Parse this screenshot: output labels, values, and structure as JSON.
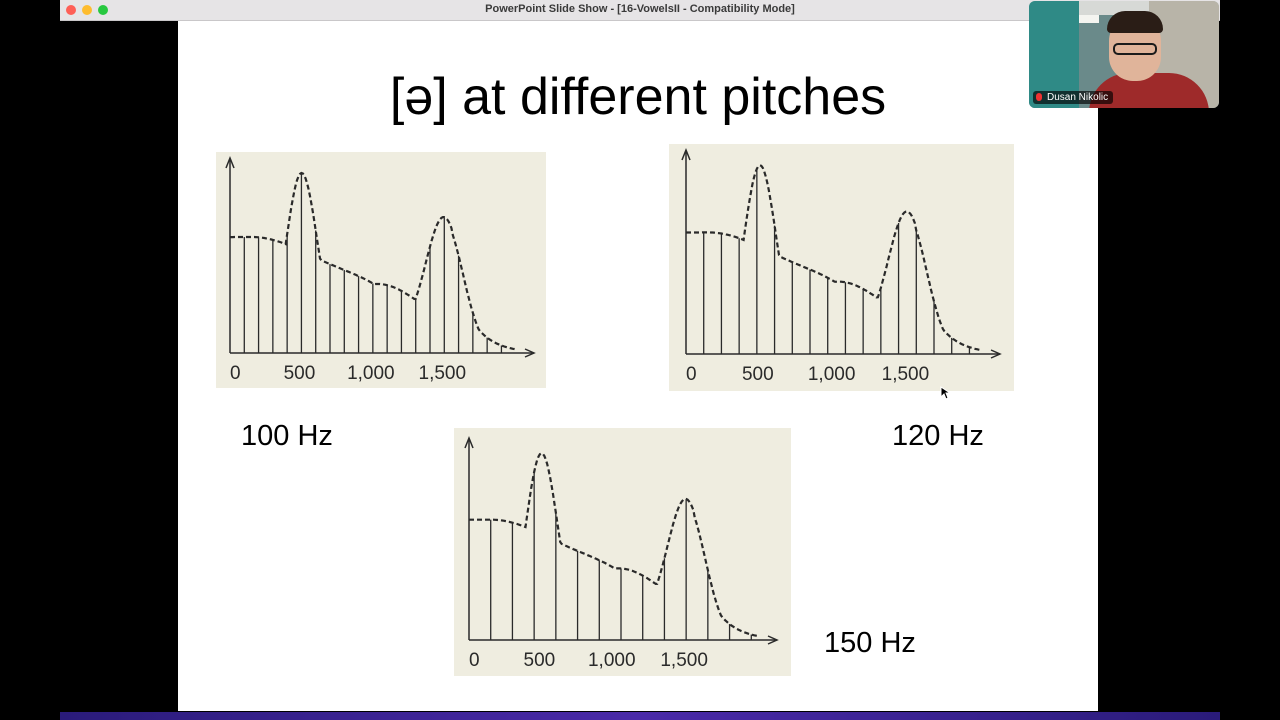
{
  "window": {
    "title": "PowerPoint Slide Show - [16-VowelsII  -  Compatibility Mode]"
  },
  "slide": {
    "title": "[ə] at different pitches",
    "spectra": [
      {
        "pitch_label": "100 Hz",
        "fundamental_hz": 100,
        "axis_labels": [
          "0",
          "500",
          "1,000",
          "1,500"
        ]
      },
      {
        "pitch_label": "120 Hz",
        "fundamental_hz": 120,
        "axis_labels": [
          "0",
          "500",
          "1,000",
          "1,500"
        ]
      },
      {
        "pitch_label": "150 Hz",
        "fundamental_hz": 150,
        "axis_labels": [
          "0",
          "500",
          "1,000",
          "1,500"
        ]
      }
    ]
  },
  "participant": {
    "name": "Dusan Nikolic",
    "mic_icon": "muted-mic-icon"
  },
  "colors": {
    "slide_background": "#ffffff",
    "spectrum_paper": "#efede0",
    "ink": "#2a2a2a"
  }
}
